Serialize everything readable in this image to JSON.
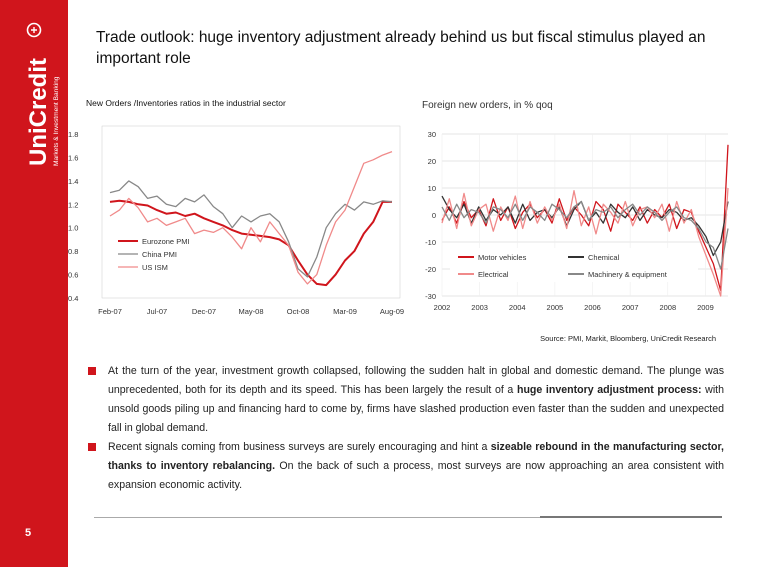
{
  "brand": {
    "name": "UniCredit",
    "tagline": "Markets & Investment Banking",
    "color": "#d0151c"
  },
  "page_number": "5",
  "title": "Trade outlook: huge inventory adjustment already behind us but fiscal stimulus played an important role",
  "source": "Source: PMI, Markit, Bloomberg, UniCredit Research",
  "bullets": [
    {
      "pre": "At the turn of the year, investment growth collapsed, following the sudden halt in global and domestic demand. The plunge was unprecedented, both for its depth and its speed. This has been largely the result of a ",
      "bold": "huge inventory adjustment process:",
      "post": " with unsold goods piling up and financing hard to come by, firms have slashed production even faster than the sudden and unexpected fall in global demand."
    },
    {
      "pre": "Recent signals coming from business surveys are surely encouraging and hint a ",
      "bold": "sizeable rebound in the manufacturing sector, thanks to inventory rebalancing.",
      "post": " On the back of such a process, most surveys are now approaching an area consistent with expansion economic activity."
    }
  ],
  "chart_data": [
    {
      "type": "line",
      "title": "New Orders /Inventories ratios in the industrial sector",
      "x_tick_labels": [
        "Feb-07",
        "Jul-07",
        "Dec-07",
        "May-08",
        "Oct-08",
        "Mar-09",
        "Aug-09"
      ],
      "x_range": [
        0,
        30
      ],
      "ylim": [
        0.4,
        1.8
      ],
      "y_ticks": [
        "0.4",
        "0.6",
        "0.8",
        "1.0",
        "1.2",
        "1.4",
        "1.6",
        "1.8"
      ],
      "grid": false,
      "legend": "bottom-left",
      "series": [
        {
          "name": "Eurozone PMI",
          "color": "#d0151c",
          "width": 2,
          "values": [
            1.22,
            1.23,
            1.22,
            1.2,
            1.19,
            1.15,
            1.12,
            1.13,
            1.1,
            1.12,
            1.08,
            1.05,
            1.02,
            0.98,
            0.95,
            0.94,
            0.93,
            0.92,
            0.9,
            0.85,
            0.72,
            0.6,
            0.52,
            0.51,
            0.6,
            0.72,
            0.8,
            0.95,
            1.05,
            1.22,
            1.22
          ]
        },
        {
          "name": "China PMI",
          "color": "#888888",
          "width": 1.3,
          "values": [
            1.3,
            1.32,
            1.4,
            1.35,
            1.25,
            1.27,
            1.2,
            1.18,
            1.25,
            1.22,
            1.28,
            1.18,
            1.12,
            1.0,
            1.1,
            1.05,
            1.1,
            1.12,
            1.05,
            0.88,
            0.65,
            0.58,
            0.75,
            1.0,
            1.12,
            1.2,
            1.15,
            1.22,
            1.2,
            1.23,
            1.22
          ]
        },
        {
          "name": "US ISM",
          "color": "#f08a8a",
          "width": 1.3,
          "values": [
            1.1,
            1.15,
            1.25,
            1.17,
            1.05,
            1.08,
            1.02,
            1.05,
            1.08,
            0.95,
            0.98,
            0.96,
            1.0,
            0.92,
            0.82,
            1.0,
            0.88,
            1.05,
            0.95,
            0.85,
            0.62,
            0.52,
            0.6,
            0.85,
            1.05,
            1.15,
            1.35,
            1.55,
            1.58,
            1.62,
            1.65
          ]
        }
      ]
    },
    {
      "type": "line",
      "title": "Foreign new orders, in % qoq",
      "x_tick_labels": [
        "2002",
        "2003",
        "2004",
        "2005",
        "2006",
        "2007",
        "2008",
        "2009"
      ],
      "x_range": [
        2002,
        2009.6
      ],
      "ylim": [
        -30,
        30
      ],
      "y_ticks": [
        "-30",
        "-20",
        "-10",
        "0",
        "10",
        "20",
        "30"
      ],
      "grid": true,
      "legend": "bottom",
      "series": [
        {
          "name": "Motor vehicles",
          "color": "#d0151c",
          "width": 1.3,
          "values": [
            -2,
            3,
            -3,
            5,
            -1,
            2,
            -4,
            6,
            -2,
            3,
            -5,
            1,
            4,
            -1,
            2,
            -3,
            6,
            -2,
            3,
            0,
            -4,
            5,
            2,
            -6,
            4,
            1,
            -2,
            3,
            -3,
            2,
            -1,
            4,
            -5,
            2,
            1,
            -6,
            -12,
            -18,
            -28,
            26
          ]
        },
        {
          "name": "Chemical",
          "color": "#333333",
          "width": 1.3,
          "values": [
            7,
            2,
            -1,
            4,
            -3,
            3,
            -2,
            2,
            0,
            3,
            -3,
            4,
            -2,
            1,
            2,
            -1,
            3,
            -4,
            2,
            5,
            -2,
            1,
            -3,
            4,
            1,
            -1,
            3,
            -2,
            2,
            0,
            -1,
            2,
            1,
            -2,
            -1,
            -4,
            -8,
            -15,
            -10,
            5
          ]
        },
        {
          "name": "Electrical",
          "color": "#f08a8a",
          "width": 1.3,
          "values": [
            -3,
            6,
            -5,
            8,
            -4,
            2,
            4,
            -6,
            3,
            -2,
            7,
            -5,
            5,
            -3,
            3,
            -2,
            4,
            -5,
            9,
            -4,
            3,
            -7,
            4,
            1,
            -3,
            5,
            -4,
            2,
            3,
            -1,
            4,
            -6,
            5,
            -3,
            2,
            -8,
            -15,
            -22,
            -30,
            10
          ]
        },
        {
          "name": "Machinery & equipment",
          "color": "#888888",
          "width": 1.3,
          "values": [
            3,
            -2,
            4,
            -1,
            2,
            1,
            -3,
            3,
            2,
            -1,
            4,
            -2,
            3,
            1,
            -2,
            4,
            2,
            -1,
            3,
            5,
            -2,
            2,
            1,
            3,
            -1,
            2,
            4,
            0,
            3,
            1,
            -2,
            1,
            3,
            -1,
            -2,
            -5,
            -10,
            -12,
            -20,
            -5
          ]
        }
      ]
    }
  ]
}
